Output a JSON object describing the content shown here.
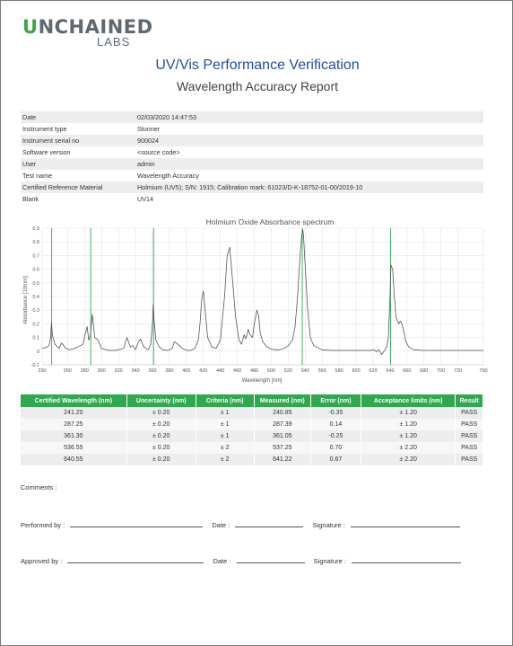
{
  "logo": {
    "prefix": "U",
    "main": "NCHAINED",
    "sub": "LABS"
  },
  "title": "UV/Vis Performance Verification",
  "subtitle": "Wavelength Accuracy Report",
  "info": [
    {
      "label": "Date",
      "value": "02/03/2020 14:47:53"
    },
    {
      "label": "Instrument type",
      "value": "Stunner"
    },
    {
      "label": "Instrument serial no",
      "value": "900024"
    },
    {
      "label": "Software version",
      "value": "<source code>"
    },
    {
      "label": "User",
      "value": "admin"
    },
    {
      "label": "Test name",
      "value": "Wavelength Accuracy"
    },
    {
      "label": "Certified Reference Material",
      "value": "Holmium (UV5); S/N: 1915; Calibration mark: 61023/D-K-18752-01-00/2019-10"
    },
    {
      "label": "Blank",
      "value": "UV14"
    }
  ],
  "chart_data": {
    "type": "line",
    "title": "Holmium Oxide Absorbance spectrum",
    "xlabel": "Wavelength [nm]",
    "ylabel": "Absorbance [10mm]",
    "xlim": [
      230,
      750
    ],
    "ylim": [
      -0.1,
      0.9
    ],
    "xticks": [
      230,
      260,
      280,
      300,
      320,
      340,
      360,
      380,
      400,
      420,
      440,
      460,
      480,
      500,
      520,
      540,
      560,
      580,
      600,
      620,
      640,
      660,
      680,
      700,
      720,
      750
    ],
    "yticks": [
      -0.1,
      0,
      0.1,
      0.2,
      0.3,
      0.4,
      0.5,
      0.6,
      0.7,
      0.8,
      0.9
    ],
    "grid": true,
    "colors": {
      "spectrum": "#555555",
      "markers": "#2fa84f",
      "grid": "#e3e3e3"
    },
    "marker_lines": [
      241.2,
      287.25,
      361.3,
      536.55,
      640.55
    ],
    "series": [
      {
        "x": [
          230,
          234,
          238,
          240,
          241,
          242,
          245,
          250,
          253,
          258,
          262,
          268,
          272,
          278,
          283,
          285,
          287,
          289,
          292,
          296,
          300,
          305,
          310,
          316,
          320,
          326,
          330,
          334,
          337,
          340,
          343,
          346,
          349,
          352,
          355,
          358,
          360,
          361,
          362,
          364,
          368,
          372,
          378,
          383,
          386,
          390,
          395,
          400,
          405,
          410,
          414,
          416,
          418,
          420,
          422,
          425,
          430,
          435,
          440,
          445,
          448,
          451,
          454,
          458,
          462,
          465,
          468,
          470,
          473,
          475,
          478,
          480,
          483,
          485,
          487,
          490,
          495,
          500,
          505,
          510,
          515,
          520,
          525,
          528,
          531,
          534,
          536,
          537,
          538,
          540,
          543,
          546,
          550,
          560,
          570,
          580,
          590,
          600,
          610,
          617,
          621,
          624,
          627,
          630,
          633,
          636,
          638,
          640,
          641,
          643,
          645,
          647,
          650,
          652,
          654,
          656,
          658,
          662,
          668,
          680,
          700,
          720,
          750
        ],
        "y": [
          0.02,
          0.025,
          0.04,
          0.1,
          0.21,
          0.12,
          0.05,
          0.02,
          0.06,
          0.02,
          0.01,
          0.02,
          0.03,
          0.05,
          0.18,
          0.08,
          0.12,
          0.27,
          0.1,
          0.08,
          0.02,
          0.01,
          0.005,
          0.005,
          0.01,
          0.02,
          0.1,
          0.03,
          0.04,
          0.01,
          0.06,
          0.09,
          0.04,
          0.02,
          0.01,
          0.05,
          0.2,
          0.34,
          0.22,
          0.08,
          0.03,
          0.01,
          0.005,
          0.02,
          0.07,
          0.05,
          0.02,
          0.005,
          0.005,
          0.02,
          0.08,
          0.2,
          0.38,
          0.44,
          0.3,
          0.1,
          0.03,
          0.02,
          0.08,
          0.4,
          0.7,
          0.76,
          0.55,
          0.25,
          0.08,
          0.05,
          0.12,
          0.09,
          0.16,
          0.12,
          0.1,
          0.2,
          0.3,
          0.26,
          0.13,
          0.07,
          0.03,
          0.015,
          0.01,
          0.01,
          0.02,
          0.04,
          0.08,
          0.18,
          0.4,
          0.7,
          0.85,
          0.89,
          0.85,
          0.62,
          0.3,
          0.1,
          0.04,
          0.01,
          0.005,
          0.005,
          0.005,
          0.005,
          0.005,
          0.005,
          0.01,
          -0.005,
          0.01,
          -0.025,
          0.0,
          0.03,
          0.1,
          0.4,
          0.63,
          0.6,
          0.4,
          0.25,
          0.2,
          0.22,
          0.2,
          0.15,
          0.08,
          0.03,
          0.01,
          0.005,
          0.005,
          0.005,
          0.005
        ]
      }
    ]
  },
  "results": {
    "headers": [
      "Certified Wavelength (nm)",
      "Uncertainty (nm)",
      "Criteria (nm)",
      "Measured (nm)",
      "Error (nm)",
      "Acceptance limits (nm)",
      "Result"
    ],
    "rows": [
      [
        "241.20",
        "± 0.20",
        "± 1",
        "240.85",
        "-0.35",
        "± 1.20",
        "PASS"
      ],
      [
        "287.25",
        "± 0.20",
        "± 1",
        "287.39",
        "0.14",
        "± 1.20",
        "PASS"
      ],
      [
        "361.30",
        "± 0.20",
        "± 1",
        "361.05",
        "-0.25",
        "± 1.20",
        "PASS"
      ],
      [
        "536.55",
        "± 0.20",
        "± 2",
        "537.25",
        "0.70",
        "± 2.20",
        "PASS"
      ],
      [
        "640.55",
        "± 0.20",
        "± 2",
        "641.22",
        "0.67",
        "± 2.20",
        "PASS"
      ]
    ]
  },
  "footer": {
    "comments": "Comments :",
    "performed": "Performed by :",
    "approved": "Approved by :",
    "date": "Date :",
    "signature": "Signature :"
  }
}
